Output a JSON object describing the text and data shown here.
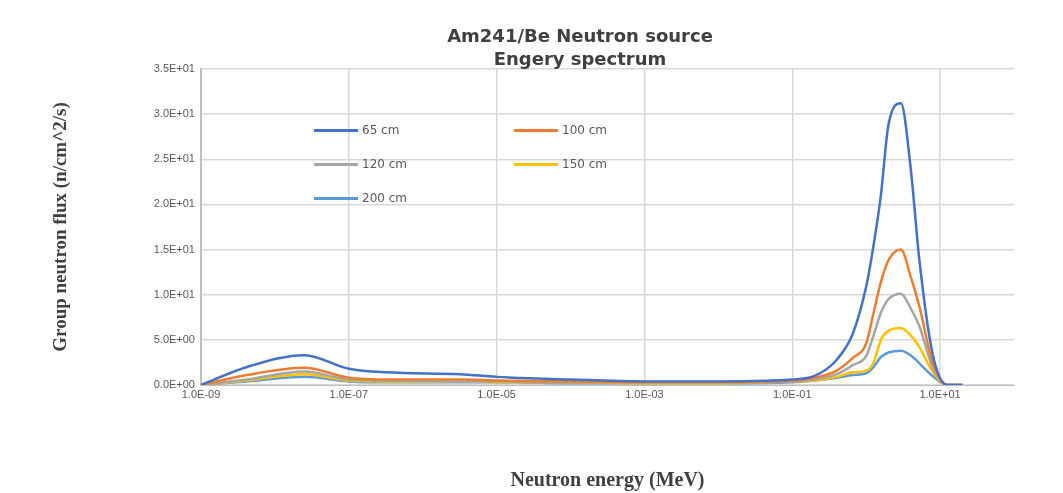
{
  "chart_data": {
    "type": "line",
    "title": "Am241/Be Neutron source",
    "subtitle": "Engery spectrum",
    "xlabel": "Neutron energy (MeV)",
    "ylabel": "Group neutron flux (n/cm^2/s)",
    "log": "x",
    "grid": true,
    "legend": "top left",
    "x": [
      1e-09,
      4.2e-09,
      2.5e-08,
      1e-07,
      3.2e-07,
      3.2e-06,
      1e-05,
      0.0001,
      0.001,
      0.01,
      0.1,
      0.2,
      0.4,
      0.66,
      1,
      1.26,
      1.58,
      2,
      2.95,
      4,
      5.25,
      7.9,
      12.6,
      20
    ],
    "xlim": [
      1e-09,
      100
    ],
    "xticks": [
      {
        "value": 1e-09,
        "label": "1.0E-09"
      },
      {
        "value": 1e-07,
        "label": "1.0E-07"
      },
      {
        "value": 1e-05,
        "label": "1.0E-05"
      },
      {
        "value": 0.001,
        "label": "1.0E-03"
      },
      {
        "value": 0.1,
        "label": "1.0E-01"
      },
      {
        "value": 10,
        "label": "1.0E+01"
      }
    ],
    "ylim": [
      0,
      35
    ],
    "yticks": [
      {
        "value": 0,
        "label": "0.0E+00"
      },
      {
        "value": 5,
        "label": "5.0E+00"
      },
      {
        "value": 10,
        "label": "1.0E+01"
      },
      {
        "value": 15,
        "label": "1.5E+01"
      },
      {
        "value": 20,
        "label": "2.0E+01"
      },
      {
        "value": 25,
        "label": "2.5E+01"
      },
      {
        "value": 30,
        "label": "3.0E+01"
      },
      {
        "value": 35,
        "label": "3.5E+01"
      }
    ],
    "series": [
      {
        "name": "65 cm",
        "color": "#4472c4",
        "values": [
          0,
          2.0,
          3.3,
          1.8,
          1.4,
          1.2,
          0.9,
          0.6,
          0.4,
          0.4,
          0.6,
          1.0,
          2.8,
          5.7,
          10.9,
          15.5,
          21,
          28.8,
          31.2,
          24,
          13.8,
          3.5,
          0,
          0
        ]
      },
      {
        "name": "100 cm",
        "color": "#ed7d31",
        "values": [
          0,
          1.1,
          1.9,
          0.8,
          0.6,
          0.6,
          0.5,
          0.4,
          0.3,
          0.3,
          0.5,
          0.8,
          1.6,
          3.0,
          4.6,
          8,
          11.4,
          13.8,
          15.0,
          12,
          8.7,
          2.5,
          0,
          0
        ]
      },
      {
        "name": "120 cm",
        "color": "#a5a5a5",
        "values": [
          0,
          0.6,
          1.5,
          0.6,
          0.5,
          0.4,
          0.4,
          0.3,
          0.3,
          0.3,
          0.4,
          0.6,
          1.2,
          2.2,
          3.2,
          5.5,
          8.0,
          9.5,
          10.1,
          8.5,
          6.5,
          2.0,
          0,
          0
        ]
      },
      {
        "name": "150 cm",
        "color": "#ffc000",
        "values": [
          0,
          0.5,
          1.2,
          0.5,
          0.4,
          0.4,
          0.3,
          0.3,
          0.2,
          0.2,
          0.4,
          0.5,
          0.9,
          1.4,
          1.6,
          2.5,
          5.0,
          6.0,
          6.3,
          5.5,
          4.2,
          1.5,
          0,
          0
        ]
      },
      {
        "name": "200 cm",
        "color": "#5b9bd5",
        "values": [
          0,
          0.4,
          0.9,
          0.4,
          0.3,
          0.3,
          0.3,
          0.2,
          0.2,
          0.2,
          0.3,
          0.5,
          0.8,
          1.1,
          1.3,
          2.0,
          3.1,
          3.6,
          3.8,
          3.3,
          2.4,
          1.0,
          0,
          0
        ]
      }
    ]
  }
}
